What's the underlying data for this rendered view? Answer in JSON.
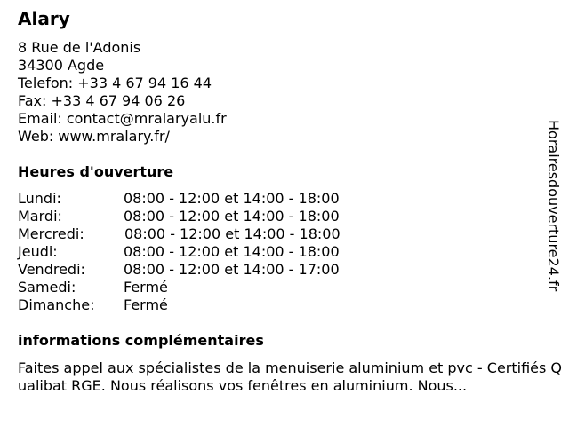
{
  "business": {
    "name": "Alary",
    "address_line1": "8 Rue de l'Adonis",
    "address_line2": "34300 Agde",
    "phone": "Telefon: +33 4 67 94 16 44",
    "fax": "Fax: +33 4 67 94 06 26",
    "email": "Email: contact@mralaryalu.fr",
    "web": "Web: www.mralary.fr/"
  },
  "hours": {
    "heading": "Heures d'ouverture",
    "days": [
      {
        "day": "Lundi:",
        "time": "08:00 - 12:00 et 14:00 - 18:00"
      },
      {
        "day": "Mardi:",
        "time": "08:00 - 12:00 et 14:00 - 18:00"
      },
      {
        "day": "Mercredi:",
        "time": "08:00 - 12:00 et 14:00 - 18:00"
      },
      {
        "day": "Jeudi:",
        "time": "08:00 - 12:00 et 14:00 - 18:00"
      },
      {
        "day": "Vendredi:",
        "time": "08:00 - 12:00 et 14:00 - 17:00"
      },
      {
        "day": "Samedi:",
        "time": "Fermé"
      },
      {
        "day": "Dimanche:",
        "time": "Fermé"
      }
    ]
  },
  "info": {
    "heading": "informations complémentaires",
    "text": "Faites appel aux spécialistes de la menuiserie aluminium et pvc - Certifiés Qualibat RGE. Nous réalisons vos fenêtres en aluminium. Nous..."
  },
  "watermark": "Horairesdouverture24.fr"
}
